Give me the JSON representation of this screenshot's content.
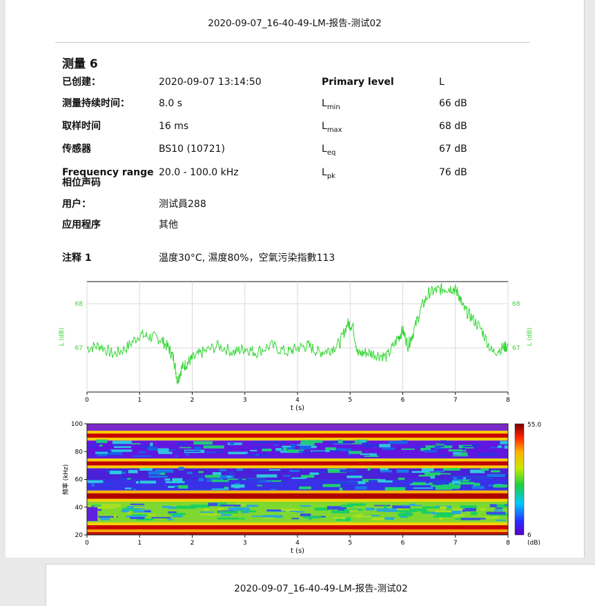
{
  "report_title": "2020-09-07_16-40-49-LM-报告-测试02",
  "measurement_title": "测量 6",
  "left_info": [
    {
      "label": "已创建：",
      "value": "2020-09-07 13:14:50"
    },
    {
      "label": "测量持续时间：",
      "value": "8.0 s"
    },
    {
      "label": "取样时间",
      "value": "16 ms"
    },
    {
      "label": "传感器",
      "value": "BS10 (10721)"
    },
    {
      "label": "Frequency range",
      "label2": "相位声码",
      "value": "20.0 - 100.0 kHz"
    },
    {
      "label": "用户：",
      "value": "测试員288"
    },
    {
      "label": "应用程序",
      "value": "其他"
    }
  ],
  "right_info": {
    "primary_label": "Primary level",
    "primary_value": "L",
    "rows": [
      {
        "sym": "L",
        "sub": "min",
        "value": "66 dB"
      },
      {
        "sym": "L",
        "sub": "max",
        "value": "68 dB"
      },
      {
        "sym": "L",
        "sub": "eq",
        "value": "67 dB"
      },
      {
        "sym": "L",
        "sub": "pk",
        "value": "76 dB"
      }
    ]
  },
  "note": {
    "label": "注释 1",
    "value": "温度30°C, 濕度80%，空氣污染指數113"
  },
  "chart_data": [
    {
      "type": "line",
      "xlabel": "t (s)",
      "ylabel": "L (dB)",
      "x_ticks": [
        "0",
        "1",
        "2",
        "3",
        "4",
        "5",
        "6",
        "7",
        "8"
      ],
      "y_ticks": [
        "67",
        "68"
      ],
      "xlim": [
        0,
        8
      ],
      "ylim": [
        66.0,
        68.5
      ],
      "series": [
        {
          "color": "#33d633",
          "x": [
            0,
            0.25,
            0.5,
            0.75,
            1.0,
            1.2,
            1.4,
            1.55,
            1.65,
            1.72,
            1.8,
            1.9,
            2.0,
            2.2,
            2.5,
            2.8,
            3.0,
            3.2,
            3.5,
            3.8,
            4.0,
            4.2,
            4.4,
            4.6,
            4.8,
            4.95,
            5.05,
            5.15,
            5.3,
            5.5,
            5.7,
            5.9,
            6.0,
            6.1,
            6.2,
            6.35,
            6.5,
            6.65,
            6.8,
            6.95,
            7.05,
            7.15,
            7.3,
            7.5,
            7.7,
            7.9,
            8.0
          ],
          "y": [
            67.0,
            67.05,
            66.85,
            67.0,
            67.3,
            67.25,
            67.2,
            67.0,
            66.75,
            66.25,
            66.55,
            66.65,
            66.75,
            66.9,
            67.05,
            66.9,
            67.0,
            66.9,
            67.05,
            66.9,
            67.0,
            67.05,
            66.9,
            66.95,
            67.1,
            67.55,
            67.5,
            66.85,
            66.9,
            66.85,
            66.8,
            67.2,
            67.4,
            67.05,
            67.35,
            67.9,
            68.25,
            68.3,
            68.35,
            68.35,
            68.25,
            67.9,
            67.7,
            67.4,
            66.9,
            67.0,
            67.05
          ]
        }
      ]
    },
    {
      "type": "heatmap",
      "xlabel": "t (s)",
      "ylabel": "频率 (kHz)",
      "x_ticks": [
        "0",
        "1",
        "2",
        "3",
        "4",
        "5",
        "6",
        "7",
        "8"
      ],
      "y_ticks": [
        "20",
        "40",
        "60",
        "80",
        "100"
      ],
      "xlim": [
        0,
        8
      ],
      "ylim": [
        20,
        100
      ],
      "colorbar_max": "55.0",
      "colorbar_min": "6",
      "colorbar_unit": "(dB)"
    }
  ]
}
